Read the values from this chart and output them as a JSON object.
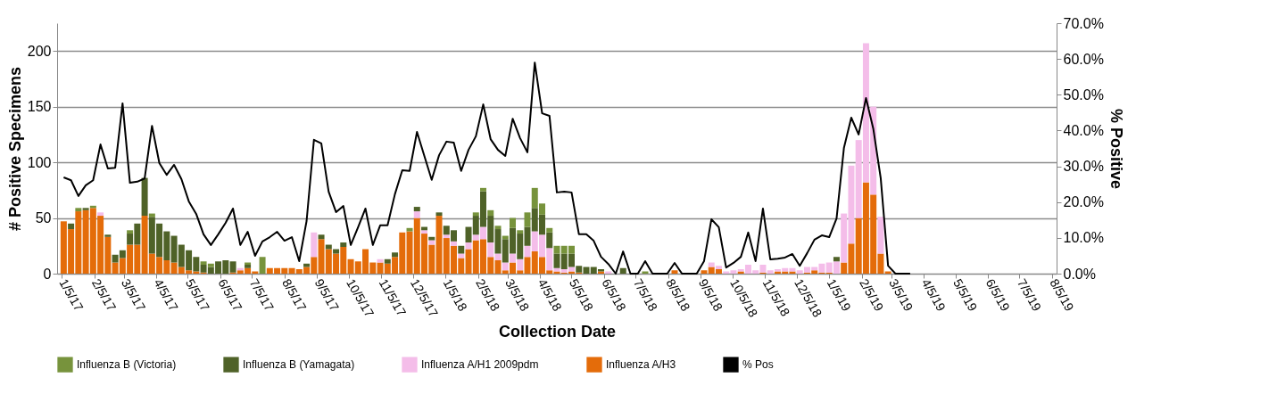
{
  "chart_data": {
    "type": "bar",
    "stacked": true,
    "xlabel": "Collection Date",
    "ylabel": "# Positive Specimens",
    "y2label": "% Positive",
    "legend": "bottom",
    "grid": "y",
    "x": [
      "2017-01-07",
      "2017-01-14",
      "2017-01-21",
      "2017-01-28",
      "2017-02-04",
      "2017-02-11",
      "2017-02-18",
      "2017-02-25",
      "2017-03-04",
      "2017-03-11",
      "2017-03-18",
      "2017-03-25",
      "2017-04-01",
      "2017-04-08",
      "2017-04-15",
      "2017-04-22",
      "2017-04-29",
      "2017-05-06",
      "2017-05-13",
      "2017-05-20",
      "2017-05-27",
      "2017-06-03",
      "2017-06-10",
      "2017-06-17",
      "2017-06-24",
      "2017-07-01",
      "2017-07-08",
      "2017-07-15",
      "2017-07-22",
      "2017-07-29",
      "2017-08-05",
      "2017-08-12",
      "2017-08-19",
      "2017-08-26",
      "2017-09-02",
      "2017-09-09",
      "2017-09-16",
      "2017-09-23",
      "2017-09-30",
      "2017-10-07",
      "2017-10-14",
      "2017-10-21",
      "2017-10-28",
      "2017-11-04",
      "2017-11-11",
      "2017-11-18",
      "2017-11-25",
      "2017-12-02",
      "2017-12-09",
      "2017-12-16",
      "2017-12-23",
      "2017-12-30",
      "2018-01-06",
      "2018-01-13",
      "2018-01-20",
      "2018-01-27",
      "2018-02-03",
      "2018-02-10",
      "2018-02-17",
      "2018-02-24",
      "2018-03-03",
      "2018-03-10",
      "2018-03-17",
      "2018-03-24",
      "2018-03-31",
      "2018-04-07",
      "2018-04-14",
      "2018-04-21",
      "2018-04-28",
      "2018-05-05",
      "2018-05-12",
      "2018-05-19",
      "2018-05-26",
      "2018-06-02",
      "2018-06-09",
      "2018-06-16",
      "2018-06-23",
      "2018-06-30",
      "2018-07-07",
      "2018-07-14",
      "2018-07-21",
      "2018-07-28",
      "2018-08-04",
      "2018-08-11",
      "2018-08-18",
      "2018-08-25",
      "2018-09-01",
      "2018-09-08",
      "2018-09-15",
      "2018-09-22",
      "2018-09-29",
      "2018-10-06",
      "2018-10-13",
      "2018-10-20",
      "2018-10-27",
      "2018-11-03",
      "2018-11-10",
      "2018-11-17",
      "2018-11-24",
      "2018-12-01",
      "2018-12-08",
      "2018-12-15",
      "2018-12-22",
      "2018-12-29",
      "2019-01-05",
      "2019-01-12",
      "2019-01-19",
      "2019-01-26",
      "2019-02-02",
      "2019-02-09",
      "2019-02-16",
      "2019-02-23",
      "2019-03-02",
      "2019-03-09",
      "2019-03-16",
      "2019-03-23"
    ],
    "xlim": [
      "2017-01-05",
      "2019-08-05"
    ],
    "xticks": [
      {
        "value": "2017-01-05",
        "label": "1/5/17"
      },
      {
        "value": "2017-02-05",
        "label": "2/5/17"
      },
      {
        "value": "2017-03-05",
        "label": "3/5/17"
      },
      {
        "value": "2017-04-05",
        "label": "4/5/17"
      },
      {
        "value": "2017-05-05",
        "label": "5/5/17"
      },
      {
        "value": "2017-06-05",
        "label": "6/5/17"
      },
      {
        "value": "2017-07-05",
        "label": "7/5/17"
      },
      {
        "value": "2017-08-05",
        "label": "8/5/17"
      },
      {
        "value": "2017-09-05",
        "label": "9/5/17"
      },
      {
        "value": "2017-10-05",
        "label": "10/5/17"
      },
      {
        "value": "2017-11-05",
        "label": "11/5/17"
      },
      {
        "value": "2017-12-05",
        "label": "12/5/17"
      },
      {
        "value": "2018-01-05",
        "label": "1/5/18"
      },
      {
        "value": "2018-02-05",
        "label": "2/5/18"
      },
      {
        "value": "2018-03-05",
        "label": "3/5/18"
      },
      {
        "value": "2018-04-05",
        "label": "4/5/18"
      },
      {
        "value": "2018-05-05",
        "label": "5/5/18"
      },
      {
        "value": "2018-06-05",
        "label": "6/5/18"
      },
      {
        "value": "2018-07-05",
        "label": "7/5/18"
      },
      {
        "value": "2018-08-05",
        "label": "8/5/18"
      },
      {
        "value": "2018-09-05",
        "label": "9/5/18"
      },
      {
        "value": "2018-10-05",
        "label": "10/5/18"
      },
      {
        "value": "2018-11-05",
        "label": "11/5/18"
      },
      {
        "value": "2018-12-05",
        "label": "12/5/18"
      },
      {
        "value": "2019-01-05",
        "label": "1/5/19"
      },
      {
        "value": "2019-02-05",
        "label": "2/5/19"
      },
      {
        "value": "2019-03-05",
        "label": "3/5/19"
      },
      {
        "value": "2019-04-05",
        "label": "4/5/19"
      },
      {
        "value": "2019-05-05",
        "label": "5/5/19"
      },
      {
        "value": "2019-06-05",
        "label": "6/5/19"
      },
      {
        "value": "2019-07-05",
        "label": "7/5/19"
      },
      {
        "value": "2019-08-05",
        "label": "8/5/19"
      }
    ],
    "ylim": [
      0,
      225
    ],
    "yticks": [
      0,
      50,
      100,
      150,
      200
    ],
    "y2lim": [
      0,
      70
    ],
    "y2ticks": [
      {
        "value": 0,
        "label": "0.0%"
      },
      {
        "value": 10,
        "label": "10.0%"
      },
      {
        "value": 20,
        "label": "20.0%"
      },
      {
        "value": 30,
        "label": "30.0%"
      },
      {
        "value": 40,
        "label": "40.0%"
      },
      {
        "value": 50,
        "label": "50.0%"
      },
      {
        "value": 60,
        "label": "60.0%"
      },
      {
        "value": 70,
        "label": "70.0%"
      }
    ],
    "series": [
      {
        "name": "Influenza A/H3",
        "color": "#e46c0a",
        "values": [
          47,
          40,
          56,
          57,
          59,
          52,
          33,
          10,
          14,
          26,
          26,
          52,
          18,
          15,
          12,
          10,
          6,
          3,
          2,
          1,
          0,
          0,
          0,
          1,
          3,
          5,
          2,
          0,
          5,
          5,
          5,
          5,
          4,
          6,
          15,
          31,
          22,
          18,
          24,
          13,
          11,
          22,
          10,
          10,
          9,
          15,
          37,
          38,
          50,
          36,
          26,
          52,
          32,
          25,
          14,
          22,
          30,
          31,
          15,
          12,
          3,
          10,
          3,
          15,
          20,
          15,
          3,
          2,
          1,
          2,
          1,
          0,
          0,
          2,
          0,
          0,
          0,
          0,
          0,
          0,
          0,
          0,
          0,
          3,
          0,
          0,
          0,
          3,
          6,
          4,
          0,
          0,
          2,
          0,
          0,
          1,
          0,
          2,
          2,
          2,
          0,
          1,
          3,
          1,
          1,
          0,
          10,
          27,
          50,
          82,
          71,
          18,
          2,
          0,
          0,
          0
        ]
      },
      {
        "name": "Influenza A/H1 2009pdm",
        "color": "#f4bde9",
        "values": [
          0,
          0,
          0,
          0,
          0,
          3,
          0,
          0,
          0,
          0,
          0,
          0,
          0,
          0,
          0,
          0,
          0,
          0,
          0,
          0,
          0,
          0,
          0,
          0,
          2,
          0,
          0,
          0,
          0,
          0,
          0,
          0,
          0,
          0,
          22,
          0,
          0,
          0,
          0,
          0,
          0,
          0,
          0,
          3,
          0,
          0,
          0,
          0,
          6,
          3,
          4,
          0,
          3,
          4,
          4,
          6,
          5,
          11,
          13,
          6,
          7,
          8,
          10,
          10,
          18,
          20,
          20,
          3,
          3,
          4,
          0,
          0,
          0,
          0,
          2,
          0,
          0,
          0,
          0,
          0,
          0,
          0,
          0,
          0,
          0,
          0,
          0,
          0,
          4,
          3,
          2,
          3,
          2,
          8,
          3,
          7,
          3,
          2,
          3,
          3,
          3,
          5,
          3,
          8,
          9,
          11,
          44,
          70,
          70,
          125,
          79,
          33,
          null,
          0,
          0,
          0
        ]
      },
      {
        "name": "Influenza B (Yamagata)",
        "color": "#4f6228",
        "values": [
          0,
          5,
          0,
          2,
          0,
          0,
          2,
          7,
          7,
          10,
          19,
          34,
          33,
          30,
          26,
          24,
          20,
          18,
          13,
          7,
          6,
          11,
          12,
          10,
          0,
          3,
          0,
          0,
          0,
          0,
          0,
          0,
          0,
          3,
          0,
          4,
          4,
          4,
          4,
          0,
          0,
          0,
          0,
          0,
          4,
          4,
          0,
          0,
          4,
          3,
          3,
          3,
          8,
          10,
          7,
          14,
          17,
          32,
          24,
          22,
          21,
          23,
          23,
          17,
          21,
          18,
          14,
          13,
          14,
          12,
          6,
          6,
          6,
          2,
          0,
          0,
          5,
          0,
          0,
          0,
          0,
          0,
          0,
          0,
          0,
          0,
          0,
          0,
          0,
          0,
          0,
          0,
          0,
          0,
          0,
          0,
          0,
          0,
          0,
          0,
          0,
          0,
          0,
          0,
          0,
          4,
          0,
          0,
          0,
          0,
          0,
          0,
          0,
          0,
          0,
          0
        ]
      },
      {
        "name": "Influenza B (Victoria)",
        "color": "#77933c",
        "values": [
          0,
          0,
          3,
          0,
          2,
          0,
          0,
          0,
          0,
          3,
          0,
          0,
          3,
          0,
          0,
          0,
          0,
          0,
          0,
          3,
          3,
          0,
          0,
          0,
          0,
          2,
          0,
          15,
          0,
          0,
          0,
          0,
          0,
          0,
          0,
          0,
          0,
          0,
          0,
          0,
          0,
          0,
          0,
          0,
          0,
          0,
          0,
          3,
          0,
          0,
          0,
          0,
          0,
          0,
          0,
          0,
          3,
          3,
          5,
          3,
          3,
          9,
          3,
          13,
          18,
          10,
          4,
          7,
          7,
          7,
          0,
          0,
          0,
          0,
          0,
          0,
          0,
          0,
          0,
          2,
          0,
          0,
          0,
          0,
          0,
          0,
          0,
          0,
          0,
          0,
          0,
          0,
          0,
          0,
          0,
          0,
          0,
          0,
          0,
          0,
          0,
          0,
          0,
          0,
          0,
          0,
          0,
          0,
          0,
          0,
          0,
          0,
          0,
          0,
          0,
          0
        ]
      },
      {
        "name": "% Pos",
        "type": "line",
        "axis": "y2",
        "color": "#000000",
        "values": [
          26.9,
          26.1,
          21.7,
          24.7,
          26.1,
          36.1,
          29.4,
          29.6,
          47.6,
          25.4,
          25.7,
          26.6,
          41.3,
          30.9,
          27.6,
          30.4,
          26.4,
          20.2,
          16.7,
          11.0,
          8.0,
          11.0,
          14.2,
          18.2,
          8.0,
          11.7,
          5.0,
          9.0,
          10.2,
          11.7,
          9.2,
          10.2,
          3.5,
          14.7,
          37.4,
          36.4,
          22.9,
          17.2,
          18.9,
          8.0,
          13.0,
          18.2,
          8.0,
          13.5,
          13.5,
          22.2,
          28.9,
          28.7,
          39.6,
          32.9,
          26.2,
          33.1,
          36.9,
          36.6,
          28.7,
          34.6,
          38.4,
          47.3,
          37.6,
          34.6,
          32.9,
          43.3,
          37.9,
          33.9,
          59.0,
          44.8,
          44.1,
          22.7,
          22.9,
          22.7,
          11.0,
          11.0,
          9.2,
          4.7,
          2.7,
          0,
          6.2,
          0,
          0,
          3.5,
          0,
          0,
          0,
          3.0,
          0,
          0,
          0,
          3.5,
          15.2,
          13.0,
          1.7,
          3.0,
          4.7,
          11.5,
          3.5,
          18.2,
          4.0,
          4.2,
          4.5,
          5.5,
          2.2,
          5.7,
          9.5,
          10.7,
          10.2,
          15.4,
          35.1,
          43.6,
          38.9,
          49.1,
          40.4,
          26.7,
          2.2,
          0,
          0,
          0
        ]
      }
    ]
  }
}
